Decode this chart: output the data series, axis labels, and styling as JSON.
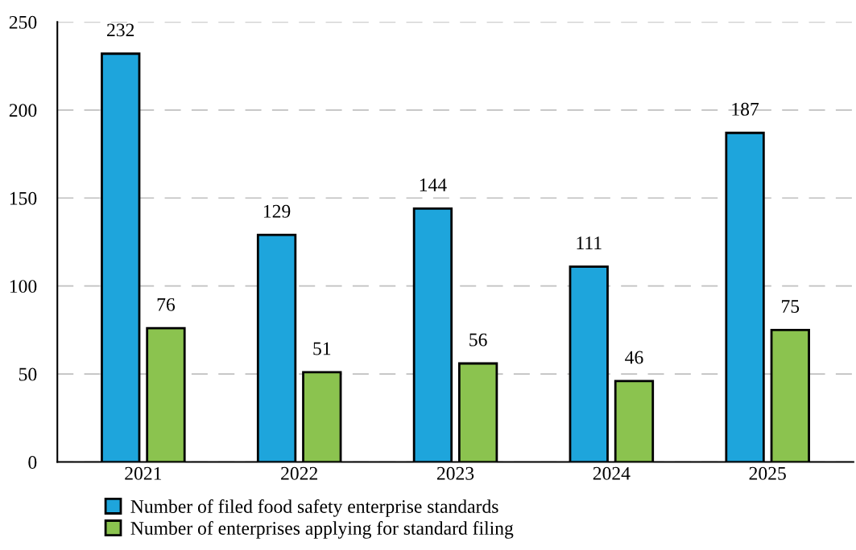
{
  "chart_data": {
    "type": "bar",
    "categories": [
      "2021",
      "2022",
      "2023",
      "2024",
      "2025"
    ],
    "series": [
      {
        "name": "Number of filed food safety enterprise standards",
        "color": "#1ea5dc",
        "values": [
          232,
          129,
          144,
          111,
          187
        ]
      },
      {
        "name": "Number of enterprises applying for standard filing",
        "color": "#8bc34f",
        "values": [
          76,
          51,
          56,
          46,
          75
        ]
      }
    ],
    "ylim": [
      0,
      250
    ],
    "yticks": [
      0,
      50,
      100,
      150,
      200,
      250
    ],
    "grid": "y",
    "legend": "bottom",
    "data_labels": true
  }
}
